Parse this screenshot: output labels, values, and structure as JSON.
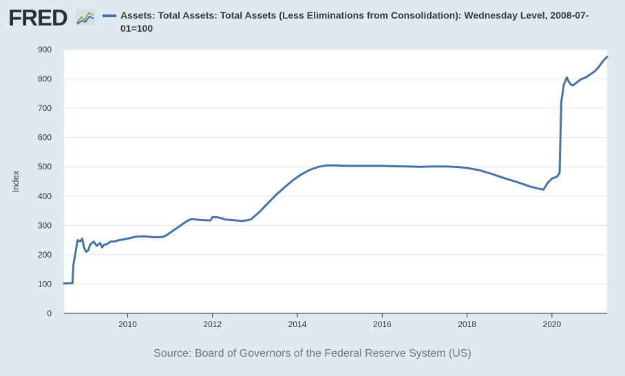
{
  "header": {
    "logo_text": "FRED",
    "logo_icon": "line-chart-icon",
    "series_title": "Assets: Total Assets: Total Assets (Less Eliminations from Consolidation): Wednesday Level, 2008-07-01=100"
  },
  "footer": {
    "source": "Source: Board of Governors of the Federal Reserve System (US)"
  },
  "colors": {
    "background": "#e1e9f0",
    "plot_background": "#ffffff",
    "series_line": "#4572a7",
    "gridline": "#e6e6e6"
  },
  "chart_data": {
    "type": "line",
    "title": "",
    "xlabel": "",
    "ylabel": "Index",
    "xlim": [
      2008.5,
      2021.3
    ],
    "ylim": [
      0,
      900
    ],
    "y_ticks": [
      0,
      100,
      200,
      300,
      400,
      500,
      600,
      700,
      800,
      900
    ],
    "x_ticks": [
      2010,
      2012,
      2014,
      2016,
      2018,
      2020
    ],
    "y_tick_labels": [
      "0",
      "100",
      "200",
      "300",
      "400",
      "500",
      "600",
      "700",
      "800",
      "900"
    ],
    "x_tick_labels": [
      "2010",
      "2012",
      "2014",
      "2016",
      "2018",
      "2020"
    ],
    "grid": true,
    "legend": "top",
    "series": [
      {
        "name": "Assets: Total Assets: Total Assets (Less Eliminations from Consolidation): Wednesday Level, 2008-07-01=100",
        "x": [
          2008.5,
          2008.7,
          2008.72,
          2008.78,
          2008.82,
          2008.88,
          2008.93,
          2008.97,
          2009.02,
          2009.07,
          2009.12,
          2009.2,
          2009.27,
          2009.35,
          2009.4,
          2009.45,
          2009.5,
          2009.6,
          2009.7,
          2009.8,
          2009.9,
          2010.0,
          2010.2,
          2010.4,
          2010.6,
          2010.8,
          2010.9,
          2011.0,
          2011.2,
          2011.4,
          2011.5,
          2011.6,
          2011.8,
          2011.95,
          2012.0,
          2012.1,
          2012.2,
          2012.3,
          2012.5,
          2012.7,
          2012.9,
          2013.1,
          2013.3,
          2013.5,
          2013.7,
          2013.9,
          2014.1,
          2014.3,
          2014.5,
          2014.7,
          2014.9,
          2015.0,
          2015.2,
          2015.5,
          2015.8,
          2016.0,
          2016.3,
          2016.6,
          2016.9,
          2017.2,
          2017.5,
          2017.8,
          2018.0,
          2018.3,
          2018.6,
          2018.9,
          2019.2,
          2019.5,
          2019.7,
          2019.8,
          2019.9,
          2020.0,
          2020.1,
          2020.14,
          2020.18,
          2020.22,
          2020.28,
          2020.35,
          2020.4,
          2020.45,
          2020.5,
          2020.6,
          2020.7,
          2020.8,
          2020.9,
          2021.0,
          2021.1,
          2021.2,
          2021.3
        ],
        "values": [
          102,
          103,
          165,
          215,
          250,
          245,
          255,
          225,
          210,
          215,
          235,
          245,
          230,
          240,
          225,
          235,
          235,
          245,
          245,
          250,
          252,
          255,
          262,
          263,
          260,
          260,
          265,
          275,
          295,
          315,
          322,
          320,
          318,
          317,
          328,
          328,
          325,
          320,
          318,
          315,
          320,
          345,
          375,
          405,
          430,
          455,
          475,
          490,
          500,
          505,
          505,
          504,
          503,
          503,
          503,
          503,
          502,
          501,
          500,
          501,
          501,
          499,
          496,
          488,
          475,
          460,
          447,
          432,
          425,
          422,
          445,
          460,
          465,
          470,
          480,
          720,
          780,
          805,
          790,
          780,
          778,
          790,
          800,
          805,
          815,
          825,
          840,
          860,
          875
        ]
      }
    ]
  }
}
